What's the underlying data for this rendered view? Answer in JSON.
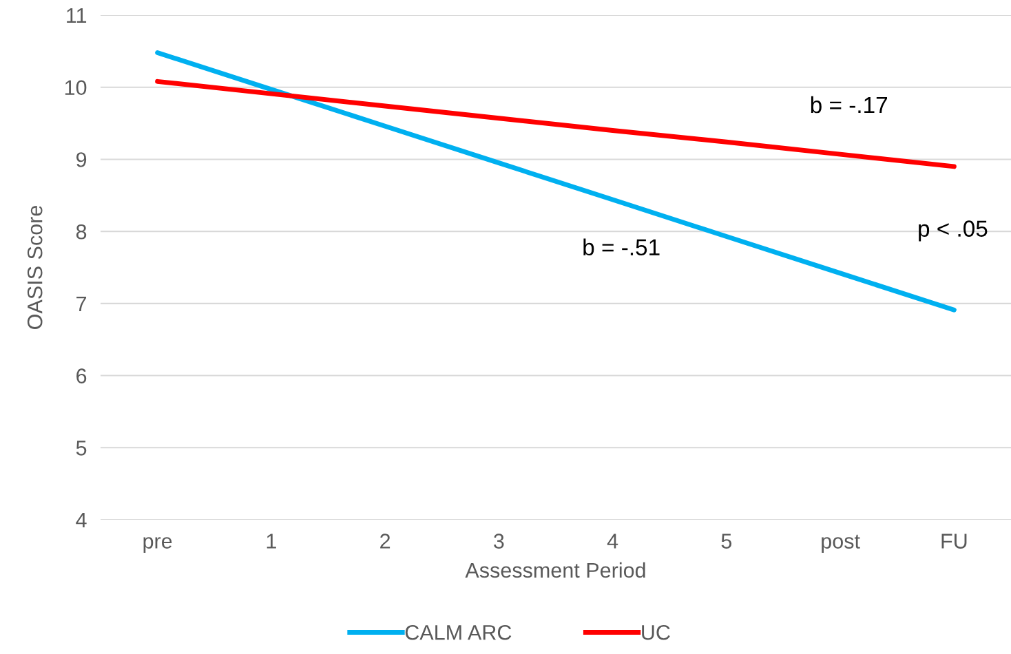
{
  "chart_data": {
    "type": "line",
    "xlabel": "Assessment Period",
    "ylabel": "OASIS Score",
    "categories": [
      "pre",
      "1",
      "2",
      "3",
      "4",
      "5",
      "post",
      "FU"
    ],
    "series": [
      {
        "name": "CALM ARC",
        "color": "#00b0f0",
        "values": [
          10.48,
          9.97,
          9.46,
          8.95,
          8.44,
          7.93,
          7.42,
          6.91
        ]
      },
      {
        "name": "UC",
        "color": "#ff0000",
        "values": [
          10.08,
          9.91,
          9.74,
          9.57,
          9.4,
          9.24,
          9.07,
          8.9
        ]
      }
    ],
    "ylim": [
      4,
      11
    ],
    "yticks": [
      4,
      5,
      6,
      7,
      8,
      9,
      10,
      11
    ],
    "grid": "y",
    "legend": "bottom",
    "marker": "none",
    "line_style": "solid",
    "annotations": [
      "b = -.17",
      "b = -.51",
      "p < .05"
    ]
  }
}
